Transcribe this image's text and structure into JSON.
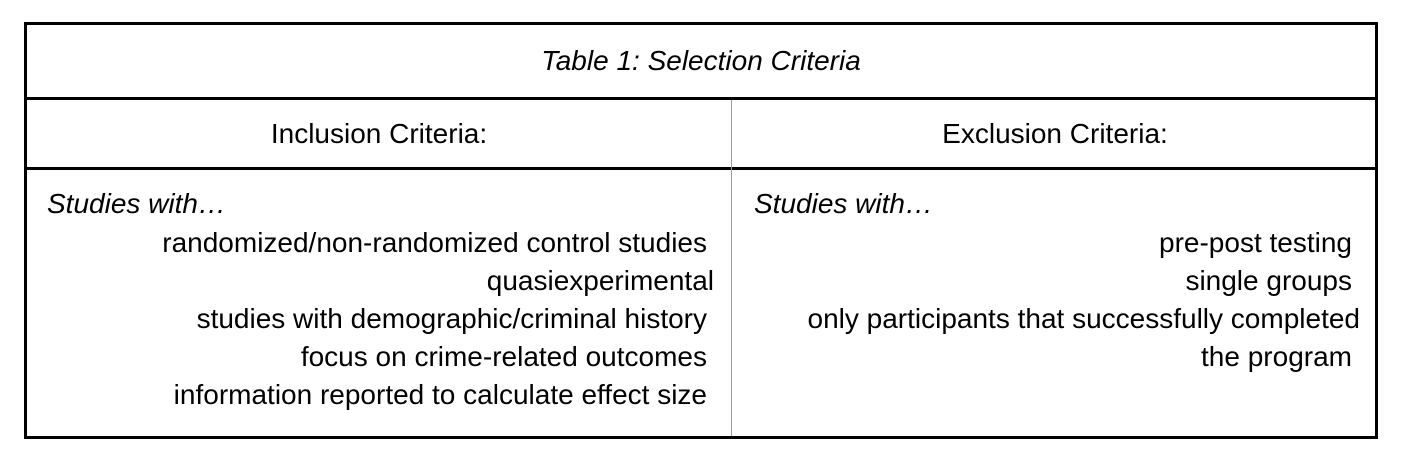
{
  "table": {
    "title": "Table 1: Selection Criteria",
    "inclusion": {
      "header": "Inclusion Criteria:",
      "lead": "Studies with…",
      "items": [
        "randomized/non-randomized control studies",
        "quasiexperimental",
        "studies with demographic/criminal history",
        "focus on crime-related outcomes",
        "information reported to calculate effect size"
      ]
    },
    "exclusion": {
      "header": "Exclusion Criteria:",
      "lead": "Studies with…",
      "items": [
        "pre-post testing",
        "single groups",
        "only participants that successfully completed",
        "the program"
      ]
    }
  }
}
